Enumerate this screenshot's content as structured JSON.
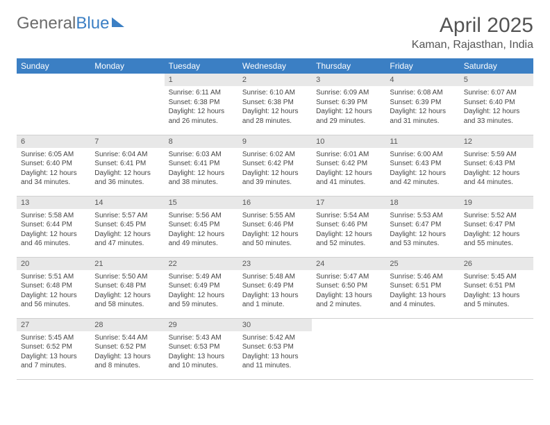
{
  "brand": {
    "part1": "General",
    "part2": "Blue"
  },
  "title": "April 2025",
  "location": "Kaman, Rajasthan, India",
  "colors": {
    "header_bg": "#3b7fc4",
    "header_text": "#ffffff",
    "daynum_bg": "#e8e8e8",
    "body_text": "#444444",
    "page_bg": "#ffffff",
    "border": "#cfcfcf"
  },
  "layout": {
    "columns": 7,
    "rows": 5,
    "col_width_pct": 14.28
  },
  "typography": {
    "title_size_pt": 30,
    "location_size_pt": 16,
    "th_size_pt": 12,
    "daynum_size_pt": 11,
    "body_size_pt": 10
  },
  "weekdays": [
    "Sunday",
    "Monday",
    "Tuesday",
    "Wednesday",
    "Thursday",
    "Friday",
    "Saturday"
  ],
  "weeks": [
    [
      null,
      null,
      {
        "n": "1",
        "sr": "6:11 AM",
        "ss": "6:38 PM",
        "dl": "12 hours and 26 minutes."
      },
      {
        "n": "2",
        "sr": "6:10 AM",
        "ss": "6:38 PM",
        "dl": "12 hours and 28 minutes."
      },
      {
        "n": "3",
        "sr": "6:09 AM",
        "ss": "6:39 PM",
        "dl": "12 hours and 29 minutes."
      },
      {
        "n": "4",
        "sr": "6:08 AM",
        "ss": "6:39 PM",
        "dl": "12 hours and 31 minutes."
      },
      {
        "n": "5",
        "sr": "6:07 AM",
        "ss": "6:40 PM",
        "dl": "12 hours and 33 minutes."
      }
    ],
    [
      {
        "n": "6",
        "sr": "6:05 AM",
        "ss": "6:40 PM",
        "dl": "12 hours and 34 minutes."
      },
      {
        "n": "7",
        "sr": "6:04 AM",
        "ss": "6:41 PM",
        "dl": "12 hours and 36 minutes."
      },
      {
        "n": "8",
        "sr": "6:03 AM",
        "ss": "6:41 PM",
        "dl": "12 hours and 38 minutes."
      },
      {
        "n": "9",
        "sr": "6:02 AM",
        "ss": "6:42 PM",
        "dl": "12 hours and 39 minutes."
      },
      {
        "n": "10",
        "sr": "6:01 AM",
        "ss": "6:42 PM",
        "dl": "12 hours and 41 minutes."
      },
      {
        "n": "11",
        "sr": "6:00 AM",
        "ss": "6:43 PM",
        "dl": "12 hours and 42 minutes."
      },
      {
        "n": "12",
        "sr": "5:59 AM",
        "ss": "6:43 PM",
        "dl": "12 hours and 44 minutes."
      }
    ],
    [
      {
        "n": "13",
        "sr": "5:58 AM",
        "ss": "6:44 PM",
        "dl": "12 hours and 46 minutes."
      },
      {
        "n": "14",
        "sr": "5:57 AM",
        "ss": "6:45 PM",
        "dl": "12 hours and 47 minutes."
      },
      {
        "n": "15",
        "sr": "5:56 AM",
        "ss": "6:45 PM",
        "dl": "12 hours and 49 minutes."
      },
      {
        "n": "16",
        "sr": "5:55 AM",
        "ss": "6:46 PM",
        "dl": "12 hours and 50 minutes."
      },
      {
        "n": "17",
        "sr": "5:54 AM",
        "ss": "6:46 PM",
        "dl": "12 hours and 52 minutes."
      },
      {
        "n": "18",
        "sr": "5:53 AM",
        "ss": "6:47 PM",
        "dl": "12 hours and 53 minutes."
      },
      {
        "n": "19",
        "sr": "5:52 AM",
        "ss": "6:47 PM",
        "dl": "12 hours and 55 minutes."
      }
    ],
    [
      {
        "n": "20",
        "sr": "5:51 AM",
        "ss": "6:48 PM",
        "dl": "12 hours and 56 minutes."
      },
      {
        "n": "21",
        "sr": "5:50 AM",
        "ss": "6:48 PM",
        "dl": "12 hours and 58 minutes."
      },
      {
        "n": "22",
        "sr": "5:49 AM",
        "ss": "6:49 PM",
        "dl": "12 hours and 59 minutes."
      },
      {
        "n": "23",
        "sr": "5:48 AM",
        "ss": "6:49 PM",
        "dl": "13 hours and 1 minute."
      },
      {
        "n": "24",
        "sr": "5:47 AM",
        "ss": "6:50 PM",
        "dl": "13 hours and 2 minutes."
      },
      {
        "n": "25",
        "sr": "5:46 AM",
        "ss": "6:51 PM",
        "dl": "13 hours and 4 minutes."
      },
      {
        "n": "26",
        "sr": "5:45 AM",
        "ss": "6:51 PM",
        "dl": "13 hours and 5 minutes."
      }
    ],
    [
      {
        "n": "27",
        "sr": "5:45 AM",
        "ss": "6:52 PM",
        "dl": "13 hours and 7 minutes."
      },
      {
        "n": "28",
        "sr": "5:44 AM",
        "ss": "6:52 PM",
        "dl": "13 hours and 8 minutes."
      },
      {
        "n": "29",
        "sr": "5:43 AM",
        "ss": "6:53 PM",
        "dl": "13 hours and 10 minutes."
      },
      {
        "n": "30",
        "sr": "5:42 AM",
        "ss": "6:53 PM",
        "dl": "13 hours and 11 minutes."
      },
      null,
      null,
      null
    ]
  ],
  "labels": {
    "sunrise": "Sunrise: ",
    "sunset": "Sunset: ",
    "daylight": "Daylight: "
  }
}
